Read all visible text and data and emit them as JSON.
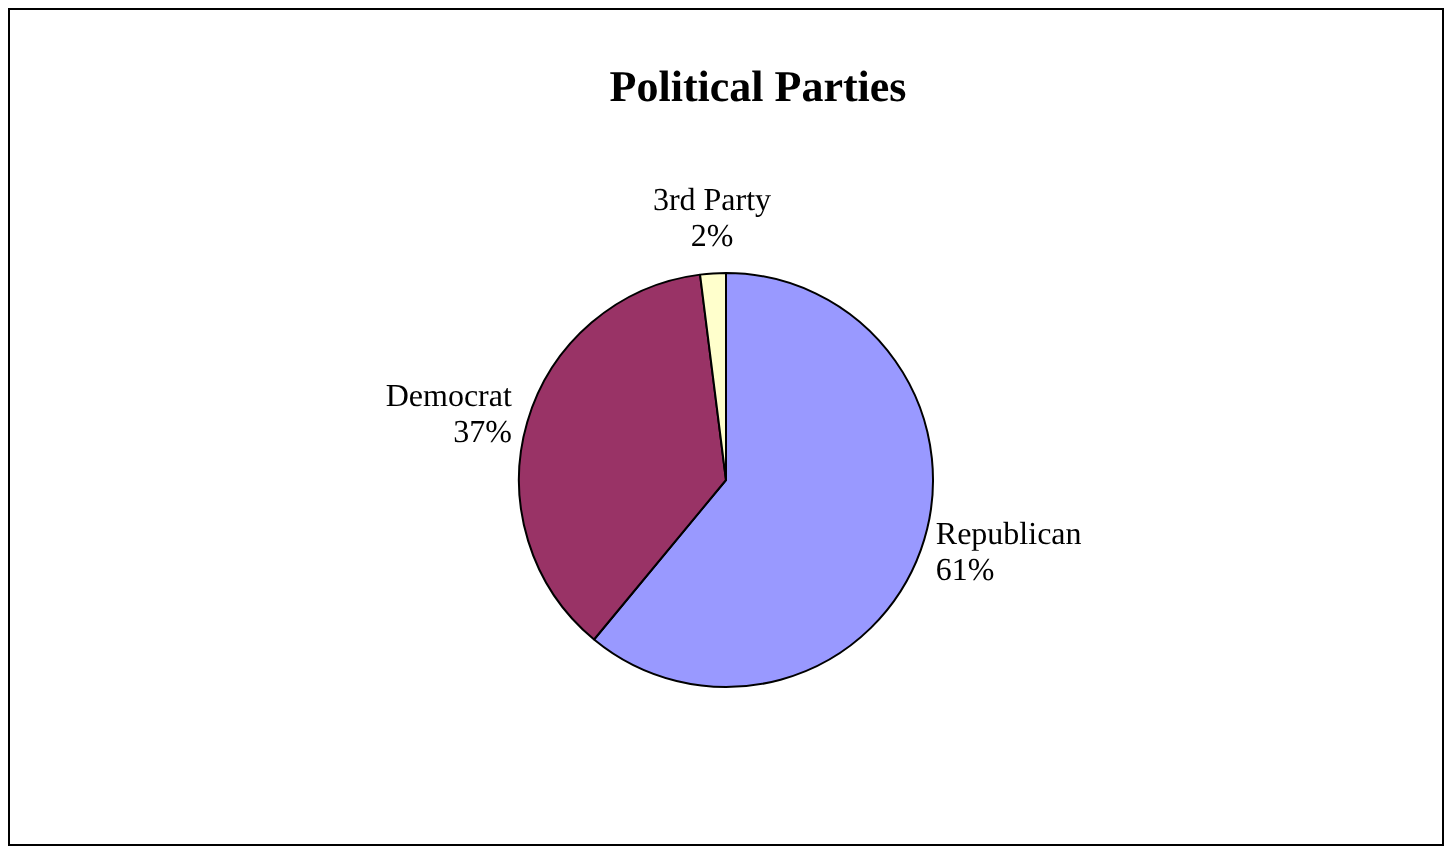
{
  "chart_data": {
    "type": "pie",
    "title": "Political Parties",
    "categories": [
      "Republican",
      "Democrat",
      "3rd Party"
    ],
    "values": [
      61,
      37,
      2
    ],
    "colors": [
      "#9999ff",
      "#993366",
      "#ffffcc"
    ],
    "value_labels": [
      "61%",
      "37%",
      "2%"
    ],
    "legend": false
  }
}
